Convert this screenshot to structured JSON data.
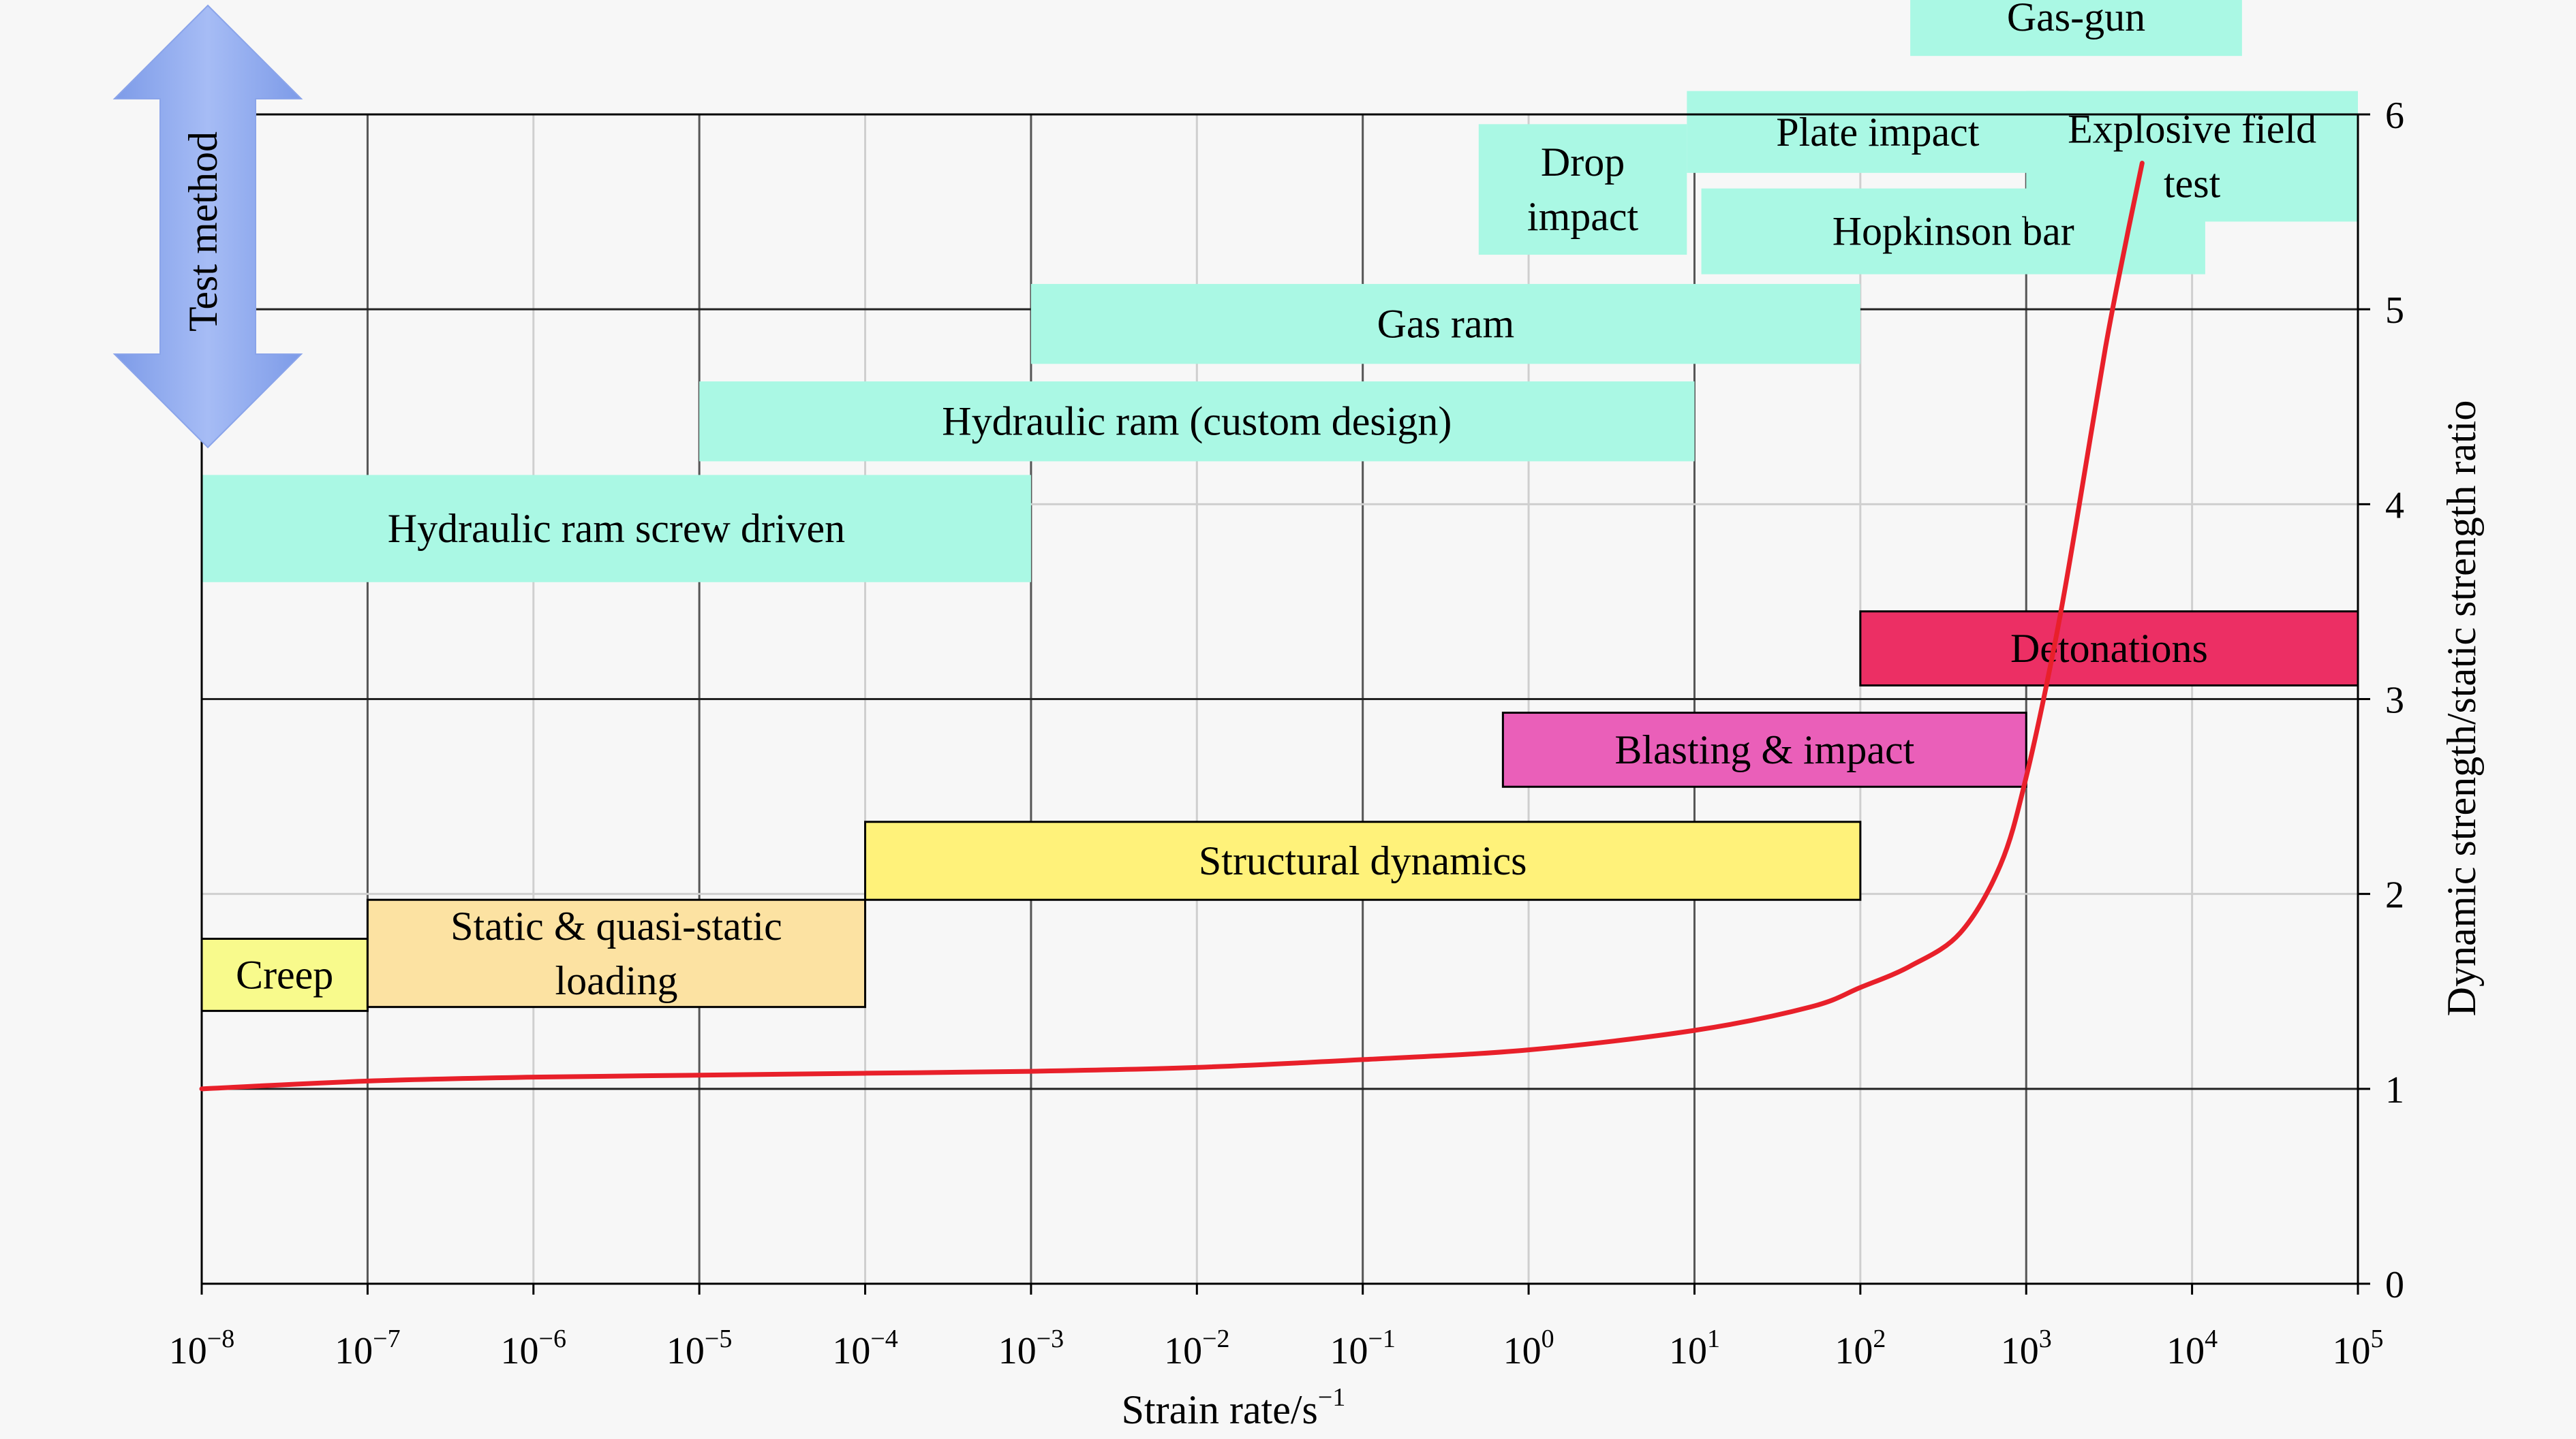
{
  "chart_data": {
    "type": "line",
    "title": "",
    "xlabel": "Strain rate/s",
    "xlabel_exponent": "−1",
    "ylabel": "Dynamic strength/static strength ratio",
    "x_scale": "log",
    "xlim": [
      1e-08,
      100000.0
    ],
    "ylim": [
      0,
      6
    ],
    "grid": true,
    "x_ticks": [
      {
        "base": "10",
        "exp": "−8",
        "value": 1e-08
      },
      {
        "base": "10",
        "exp": "−7",
        "value": 1e-07
      },
      {
        "base": "10",
        "exp": "−6",
        "value": 1e-06
      },
      {
        "base": "10",
        "exp": "−5",
        "value": 1e-05
      },
      {
        "base": "10",
        "exp": "−4",
        "value": 0.0001
      },
      {
        "base": "10",
        "exp": "−3",
        "value": 0.001
      },
      {
        "base": "10",
        "exp": "−2",
        "value": 0.01
      },
      {
        "base": "10",
        "exp": "−1",
        "value": 0.1
      },
      {
        "base": "10",
        "exp": "0",
        "value": 1
      },
      {
        "base": "10",
        "exp": "1",
        "value": 10
      },
      {
        "base": "10",
        "exp": "2",
        "value": 100
      },
      {
        "base": "10",
        "exp": "3",
        "value": 1000
      },
      {
        "base": "10",
        "exp": "4",
        "value": 10000
      },
      {
        "base": "10",
        "exp": "5",
        "value": 100000
      }
    ],
    "y_ticks": [
      "0",
      "1",
      "2",
      "3",
      "4",
      "5",
      "6"
    ],
    "series": [
      {
        "color": "#e8202a",
        "x": [
          1e-08,
          1e-07,
          1e-06,
          1e-05,
          0.0001,
          0.001,
          0.01,
          0.1,
          1,
          10,
          50,
          100,
          200,
          400,
          700,
          1000,
          1500,
          2000,
          3000,
          4000,
          5000
        ],
        "y": [
          1.0,
          1.04,
          1.06,
          1.07,
          1.08,
          1.09,
          1.11,
          1.15,
          1.2,
          1.3,
          1.42,
          1.52,
          1.63,
          1.8,
          2.15,
          2.6,
          3.3,
          3.9,
          4.8,
          5.35,
          5.75
        ]
      }
    ],
    "test_method_label": "Test method",
    "test_methods": [
      {
        "label": "Hydraulic ram screw driven",
        "x_from": 1e-08,
        "x_to": 0.001,
        "y_from": 3.6,
        "y_to": 4.15,
        "color": "#aaf8e4"
      },
      {
        "label": "Hydraulic ram (custom design)",
        "x_from": 1e-05,
        "x_to": 10,
        "y_from": 4.22,
        "y_to": 4.63,
        "color": "#aaf8e4"
      },
      {
        "label": "Gas ram",
        "x_from": 0.001,
        "x_to": 100,
        "y_from": 4.72,
        "y_to": 5.13,
        "color": "#aaf8e4"
      },
      {
        "label": "Drop impact",
        "lines": [
          "Drop",
          "impact"
        ],
        "x_from": 0.5,
        "x_to": 9,
        "y_from": 5.28,
        "y_to": 5.95,
        "color": "#aaf8e4"
      },
      {
        "label": "Plate impact",
        "x_from": 9,
        "x_to": 1800,
        "y_from": 5.7,
        "y_to": 6.12,
        "color": "#aaf8e4"
      },
      {
        "label": "Hopkinson bar",
        "x_from": 11,
        "x_to": 12000,
        "y_from": 5.18,
        "y_to": 5.62,
        "color": "#aaf8e4"
      },
      {
        "label": "Gas-gun",
        "x_from": 200,
        "x_to": 20000.0,
        "y_from": 6.3,
        "y_to": 6.7,
        "color": "#aaf8e4"
      },
      {
        "label": "Explosive field test",
        "lines": [
          "Explosive field",
          "test"
        ],
        "x_from": 1000.0,
        "x_to": 100000.0,
        "y_from": 5.45,
        "y_to": 6.12,
        "color": "#aaf8e4"
      }
    ],
    "loading_regimes": [
      {
        "label": "Creep",
        "x_from": 1e-08,
        "x_to": 1e-07,
        "y_from": 1.4,
        "y_to": 1.77,
        "color": "#f8fa8c"
      },
      {
        "label": "Static & quasi-static loading",
        "lines": [
          "Static & quasi-static",
          "loading"
        ],
        "x_from": 1e-07,
        "x_to": 0.0001,
        "y_from": 1.42,
        "y_to": 1.97,
        "color": "#fce2a2"
      },
      {
        "label": "Structural dynamics",
        "x_from": 0.0001,
        "x_to": 100,
        "y_from": 1.97,
        "y_to": 2.37,
        "color": "#fff27a"
      },
      {
        "label": "Blasting & impact",
        "x_from": 0.7,
        "x_to": 1000,
        "y_from": 2.55,
        "y_to": 2.93,
        "color": "#ea5fb9"
      },
      {
        "label": "Detonations",
        "x_from": 100,
        "x_to": 100000.0,
        "y_from": 3.07,
        "y_to": 3.45,
        "color": "#ec2f64"
      }
    ]
  }
}
